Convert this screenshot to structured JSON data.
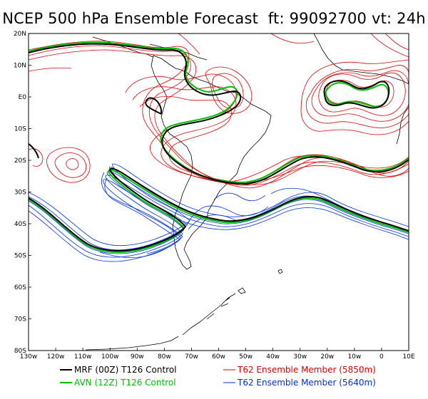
{
  "title": "NCEP 500 hPa Ensemble Forecast  ft: 99092700 vt: 24h",
  "map": {
    "lat_labels": [
      "20N",
      "10N",
      "E0",
      "10S",
      "20S",
      "30S",
      "40S",
      "50S",
      "60S",
      "70S",
      "80S"
    ],
    "lon_labels": [
      "130w",
      "120w",
      "110w",
      "100w",
      "90w",
      "80w",
      "70w",
      "60w",
      "50w",
      "40w",
      "30w",
      "20w",
      "10w",
      "0",
      "10E"
    ]
  },
  "legend": {
    "items": [
      {
        "label": "MRF (00Z) T126 Control",
        "color": "#000000",
        "text_color": "#000000"
      },
      {
        "label": "AVN (12Z) T126 Control",
        "color": "#00c000",
        "text_color": "#00c000"
      },
      {
        "label": "T62 Ensemble Member (5850m)",
        "color": "#e00000",
        "text_color": "#e00000"
      },
      {
        "label": "T62 Ensemble Member (5640m)",
        "color": "#0030e0",
        "text_color": "#0030e0"
      }
    ]
  },
  "colors": {
    "mrf": "#000000",
    "avn": "#00c000",
    "member_5850": "#e00000",
    "member_5640": "#0030e0",
    "coast": "#000000"
  }
}
